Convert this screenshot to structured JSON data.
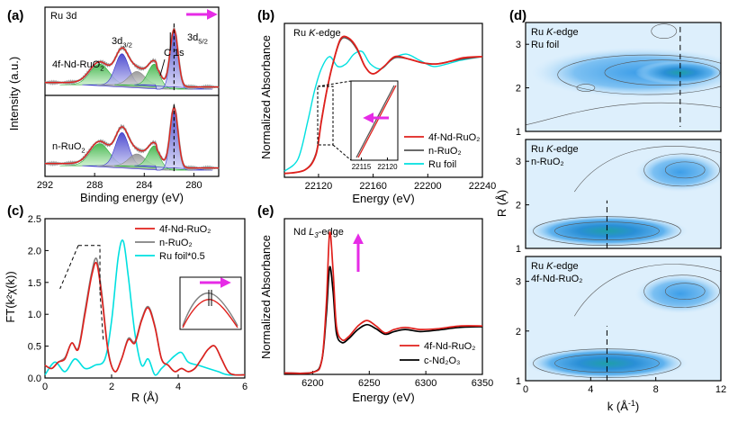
{
  "chart_data": [
    {
      "panel": "(a)",
      "type": "line",
      "xlabel": "Binding energy (eV)",
      "ylabel": "Intensity (a.u.)",
      "xlim": [
        292,
        278
      ],
      "xticks": [
        292,
        288,
        284,
        280
      ],
      "reversed_x": true,
      "title": "Ru 3d",
      "annotations": [
        "3d3/2",
        "C 1s",
        "3d5/2"
      ],
      "subpanels": [
        {
          "name": "4f-Nd-RuO2",
          "label": "4f-Nd-RuO₂",
          "fit_component_colors": [
            "#3cb33c",
            "#3333cc",
            "#999999",
            "#3cb33c",
            "#3333cc"
          ],
          "peaks_eV": [
            287.6,
            285.8,
            284.6,
            283.2,
            281.6
          ]
        },
        {
          "name": "n-RuO2",
          "label": "n-RuO₂",
          "fit_component_colors": [
            "#3cb33c",
            "#3333cc",
            "#999999",
            "#3cb33c",
            "#3333cc"
          ],
          "peaks_eV": [
            287.8,
            286.0,
            284.7,
            283.4,
            281.7
          ]
        }
      ]
    },
    {
      "panel": "(b)",
      "type": "line",
      "title": "Ru K-edge",
      "xlabel": "Energy (eV)",
      "ylabel": "Normalized Absorbance",
      "xlim": [
        22095,
        22240
      ],
      "xticks": [
        22120,
        22160,
        22200,
        22240
      ],
      "legend": "lower-right",
      "series": [
        {
          "name": "4f-Nd-RuO₂",
          "color": "#e0201c",
          "x": [
            22095,
            22110,
            22118,
            22122,
            22126,
            22130,
            22136,
            22142,
            22148,
            22154,
            22160,
            22168,
            22176,
            22186,
            22196,
            22206,
            22216,
            22226,
            22240
          ],
          "y": [
            0.03,
            0.06,
            0.18,
            0.45,
            0.7,
            0.9,
            1.12,
            1.13,
            1.05,
            0.9,
            0.84,
            0.9,
            0.98,
            0.96,
            0.93,
            0.92,
            0.94,
            0.97,
            0.98
          ]
        },
        {
          "name": "n-RuO₂",
          "color": "#555555",
          "x": [
            22095,
            22110,
            22118,
            22122,
            22126,
            22130,
            22136,
            22142,
            22148,
            22154,
            22160,
            22168,
            22176,
            22186,
            22196,
            22206,
            22216,
            22226,
            22240
          ],
          "y": [
            0.03,
            0.06,
            0.19,
            0.46,
            0.7,
            0.9,
            1.11,
            1.12,
            1.04,
            0.9,
            0.84,
            0.9,
            0.97,
            0.96,
            0.93,
            0.92,
            0.94,
            0.96,
            0.98
          ]
        },
        {
          "name": "Ru foil",
          "color": "#00e0e0",
          "x": [
            22095,
            22105,
            22112,
            22117,
            22122,
            22128,
            22134,
            22140,
            22146,
            22152,
            22158,
            22166,
            22174,
            22184,
            22194,
            22204,
            22214,
            22224,
            22240
          ],
          "y": [
            0.05,
            0.15,
            0.45,
            0.7,
            0.88,
            0.98,
            0.9,
            0.92,
            1.0,
            1.02,
            0.92,
            0.88,
            0.96,
            1.0,
            0.95,
            0.9,
            0.92,
            0.95,
            0.98
          ]
        }
      ],
      "inset_xticks": [
        22115,
        22120
      ]
    },
    {
      "panel": "(c)",
      "type": "line",
      "xlabel": "R (Å)",
      "ylabel": "FT(k²χ(k))",
      "xlim": [
        0,
        6
      ],
      "ylim": [
        0,
        2.5
      ],
      "xticks": [
        0,
        2,
        4,
        6
      ],
      "yticks": [
        0.0,
        0.5,
        1.0,
        1.5,
        2.0,
        2.5
      ],
      "legend": "top-right",
      "series": [
        {
          "name": "4f-Nd-RuO₂",
          "color": "#e0201c",
          "x": [
            0,
            0.2,
            0.4,
            0.6,
            0.8,
            1.0,
            1.2,
            1.4,
            1.55,
            1.7,
            1.9,
            2.1,
            2.3,
            2.5,
            2.7,
            2.9,
            3.1,
            3.3,
            3.5,
            3.7,
            3.9,
            4.1,
            4.3,
            4.5,
            4.7,
            4.9,
            5.1,
            5.3,
            5.5,
            5.7,
            6.0
          ],
          "y": [
            0.2,
            0.15,
            0.25,
            0.3,
            0.55,
            0.45,
            1.0,
            1.6,
            1.8,
            1.3,
            0.4,
            0.1,
            0.3,
            0.6,
            0.55,
            0.9,
            1.1,
            0.8,
            0.3,
            0.2,
            0.1,
            0.15,
            0.1,
            0.15,
            0.3,
            0.45,
            0.5,
            0.3,
            0.1,
            0.05,
            0.05
          ]
        },
        {
          "name": "n-RuO₂",
          "color": "#808080",
          "x": [
            0,
            0.2,
            0.4,
            0.6,
            0.8,
            1.0,
            1.2,
            1.4,
            1.55,
            1.7,
            1.9,
            2.1,
            2.3,
            2.5,
            2.7,
            2.9,
            3.1,
            3.3,
            3.5,
            3.7,
            3.9,
            4.1,
            4.3,
            4.5,
            4.7,
            4.9,
            5.1,
            5.3,
            5.5,
            5.7,
            6.0
          ],
          "y": [
            0.2,
            0.15,
            0.25,
            0.32,
            0.55,
            0.47,
            1.05,
            1.65,
            1.87,
            1.35,
            0.42,
            0.1,
            0.3,
            0.62,
            0.57,
            0.92,
            1.12,
            0.82,
            0.3,
            0.2,
            0.1,
            0.15,
            0.1,
            0.15,
            0.3,
            0.45,
            0.5,
            0.3,
            0.1,
            0.05,
            0.05
          ]
        },
        {
          "name": "Ru foil*0.5",
          "color": "#00e0e0",
          "x": [
            0,
            0.3,
            0.6,
            0.9,
            1.2,
            1.5,
            1.8,
            2.0,
            2.2,
            2.35,
            2.5,
            2.7,
            2.9,
            3.1,
            3.3,
            3.5,
            3.7,
            3.9,
            4.1,
            4.3,
            4.6,
            4.9,
            5.2,
            5.5,
            6.0
          ],
          "y": [
            0.05,
            0.25,
            0.1,
            0.3,
            0.15,
            0.2,
            0.3,
            0.9,
            1.9,
            2.15,
            1.6,
            0.7,
            0.2,
            0.3,
            0.05,
            0.15,
            0.25,
            0.35,
            0.4,
            0.25,
            0.2,
            0.15,
            0.1,
            0.05,
            0.05
          ]
        }
      ]
    },
    {
      "panel": "(e)",
      "type": "line",
      "title": "Nd L3-edge",
      "xlabel": "Energy (eV)",
      "ylabel": "Normalized Absorbance",
      "xlim": [
        6175,
        6350
      ],
      "xticks": [
        6200,
        6250,
        6300,
        6350
      ],
      "legend": "lower-right",
      "series": [
        {
          "name": "4f-Nd-RuO₂",
          "color": "#e0201c",
          "x": [
            6175,
            6200,
            6208,
            6212,
            6215,
            6218,
            6221,
            6226,
            6232,
            6240,
            6248,
            6256,
            6264,
            6272,
            6282,
            6295,
            6310,
            6330,
            6350
          ],
          "y": [
            0.02,
            0.03,
            0.2,
            1.0,
            2.05,
            1.5,
            0.7,
            0.5,
            0.55,
            0.7,
            0.78,
            0.7,
            0.6,
            0.65,
            0.68,
            0.65,
            0.66,
            0.7,
            0.7
          ]
        },
        {
          "name": "c-Nd₂O₃",
          "color": "#000000",
          "x": [
            6175,
            6200,
            6208,
            6212,
            6215,
            6218,
            6221,
            6226,
            6232,
            6240,
            6248,
            6256,
            6264,
            6272,
            6282,
            6295,
            6310,
            6330,
            6350
          ],
          "y": [
            0.02,
            0.03,
            0.2,
            0.85,
            1.55,
            1.2,
            0.6,
            0.46,
            0.52,
            0.65,
            0.72,
            0.66,
            0.58,
            0.62,
            0.65,
            0.62,
            0.64,
            0.68,
            0.69
          ]
        }
      ]
    },
    {
      "panel": "(d)",
      "type": "heatmap",
      "xlabel": "k (Å⁻¹)",
      "ylabel": "R (Å)",
      "xlim": [
        0,
        12
      ],
      "ylim": [
        1,
        3.5
      ],
      "xticks": [
        0,
        4,
        8,
        12
      ],
      "yticks": [
        1,
        2,
        3
      ],
      "subpanels": [
        {
          "name": "Ru foil",
          "label_line1": "Ru K-edge",
          "label_line2": "Ru foil",
          "max_k": 9.5,
          "max_R": 2.35
        },
        {
          "name": "n-RuO2",
          "label_line1": "Ru K-edge",
          "label_line2": "n-RuO₂",
          "max_k": 5,
          "max_R": 1.4
        },
        {
          "name": "4f-Nd-RuO2",
          "label_line1": "Ru K-edge",
          "label_line2": "4f-Nd-RuO₂",
          "max_k": 5,
          "max_R": 1.35
        }
      ]
    }
  ],
  "labels": {
    "a": "(a)",
    "b": "(b)",
    "c": "(c)",
    "d": "(d)",
    "e": "(e)",
    "a_title": "Ru 3d",
    "a_3d32": "3d",
    "a_3d32_sub": "3/2",
    "a_c1s": "C 1s",
    "a_3d52": "3d",
    "a_3d52_sub": "5/2",
    "a_s1": "4f-Nd-RuO",
    "a_s1_sub": "2",
    "a_s2": "n-RuO",
    "a_s2_sub": "2",
    "a_xlabel": "Binding energy (eV)",
    "a_ylabel": "Intensity (a.u.)",
    "b_title_a": "Ru ",
    "b_title_k": "K",
    "b_title_b": "-edge",
    "b_xlabel": "Energy (eV)",
    "b_ylabel": "Normalized Absorbance",
    "c_xlabel": "R (Å)",
    "c_ylabel": "FT(k²χ(k))",
    "e_title_a": "Nd ",
    "e_title_l": "L",
    "e_title_sub": "3",
    "e_title_b": "-edge",
    "e_xlabel": "Energy (eV)",
    "e_ylabel": "Normalized Absorbance",
    "d_xlabel": "k (Å",
    "d_xlabel_sup": "-1",
    "d_xlabel_end": ")",
    "d_ylabel": "R (Å)"
  }
}
